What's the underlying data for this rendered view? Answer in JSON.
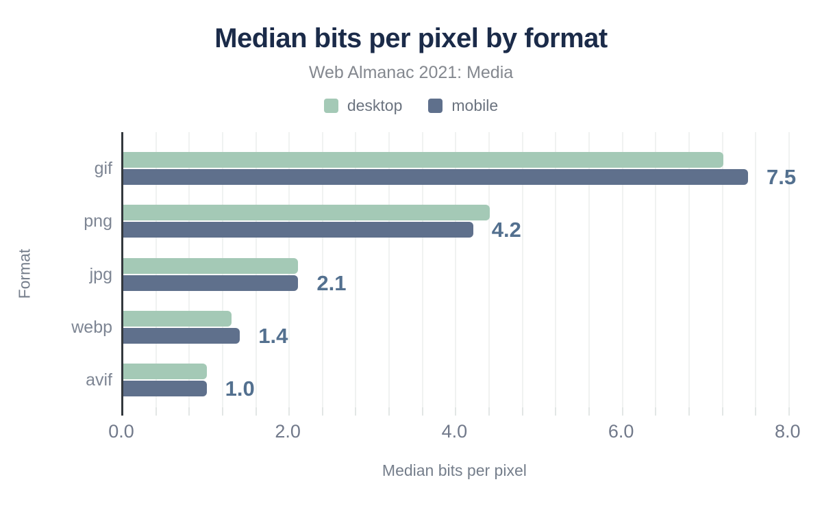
{
  "figure": {
    "title": "Median bits per pixel by format",
    "subtitle": "Web Almanac 2021: Media"
  },
  "legend": {
    "items": [
      {
        "label": "desktop",
        "color": "#a4c9b6"
      },
      {
        "label": "mobile",
        "color": "#5f708c"
      }
    ]
  },
  "axes": {
    "x_title": "Median bits per pixel",
    "y_title": "Format",
    "x_tick_labels": [
      "0.0",
      "2.0",
      "4.0",
      "6.0",
      "8.0"
    ]
  },
  "colors": {
    "title_text": "#1b2b49",
    "subtitle_text": "#84888f",
    "desktop_bar": "#a4c9b6",
    "mobile_bar": "#5f708c",
    "value_label_text": "#53708f",
    "axis_text": "#757e8b",
    "category_text": "#7d8593",
    "axis_line": "#33383d",
    "gridline": "#f0f2f1"
  },
  "chart_data": {
    "type": "bar",
    "orientation": "horizontal",
    "title": "Median bits per pixel by format",
    "subtitle": "Web Almanac 2021: Media",
    "xlabel": "Median bits per pixel",
    "ylabel": "Format",
    "categories": [
      "gif",
      "png",
      "jpg",
      "webp",
      "avif"
    ],
    "series": [
      {
        "name": "desktop",
        "values": [
          7.2,
          4.4,
          2.1,
          1.3,
          1.0
        ]
      },
      {
        "name": "mobile",
        "values": [
          7.5,
          4.2,
          2.1,
          1.4,
          1.0
        ],
        "data_labels": [
          "7.5",
          "4.2",
          "2.1",
          "1.4",
          "1.0"
        ]
      }
    ],
    "xlim": [
      0,
      8.06
    ],
    "xticks": [
      0.0,
      2.0,
      4.0,
      6.0,
      8.0
    ],
    "grid": true,
    "grid_step": 0.4,
    "legend_position": "top"
  }
}
